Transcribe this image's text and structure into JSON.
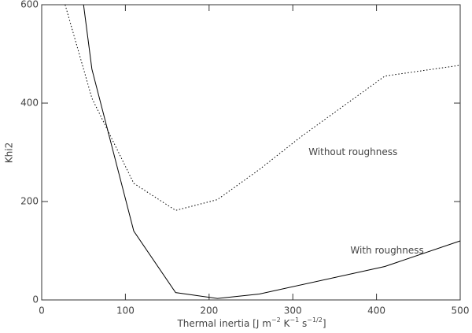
{
  "chart_data": {
    "type": "line",
    "x_label": [
      "Thermal inertia [J m",
      "−2",
      " K",
      "−1",
      " s",
      "−1/2",
      "]"
    ],
    "y_label": "Khi2",
    "xlim": [
      0,
      500
    ],
    "xticks": [
      0,
      100,
      200,
      300,
      400,
      500
    ],
    "ylim": [
      0,
      600
    ],
    "yticks": [
      0,
      200,
      400,
      600
    ],
    "series": [
      {
        "name": "With roughness",
        "color": "#000000",
        "dash": "solid",
        "x": [
          50,
          60,
          110,
          160,
          210,
          260,
          410,
          500
        ],
        "values": [
          600,
          469,
          140,
          15,
          3,
          12,
          68,
          120
        ]
      },
      {
        "name": "Without roughness",
        "color": "#000000",
        "dash": "dotted",
        "x": [
          28,
          60,
          110,
          160,
          210,
          260,
          310,
          410,
          500
        ],
        "values": [
          600,
          410,
          237,
          182,
          204,
          265,
          332,
          455,
          477
        ]
      }
    ],
    "annotations": [
      {
        "text": "With roughness",
        "x": 350,
        "y": 100
      },
      {
        "text": "Without roughness",
        "x": 300,
        "y": 300
      }
    ]
  }
}
